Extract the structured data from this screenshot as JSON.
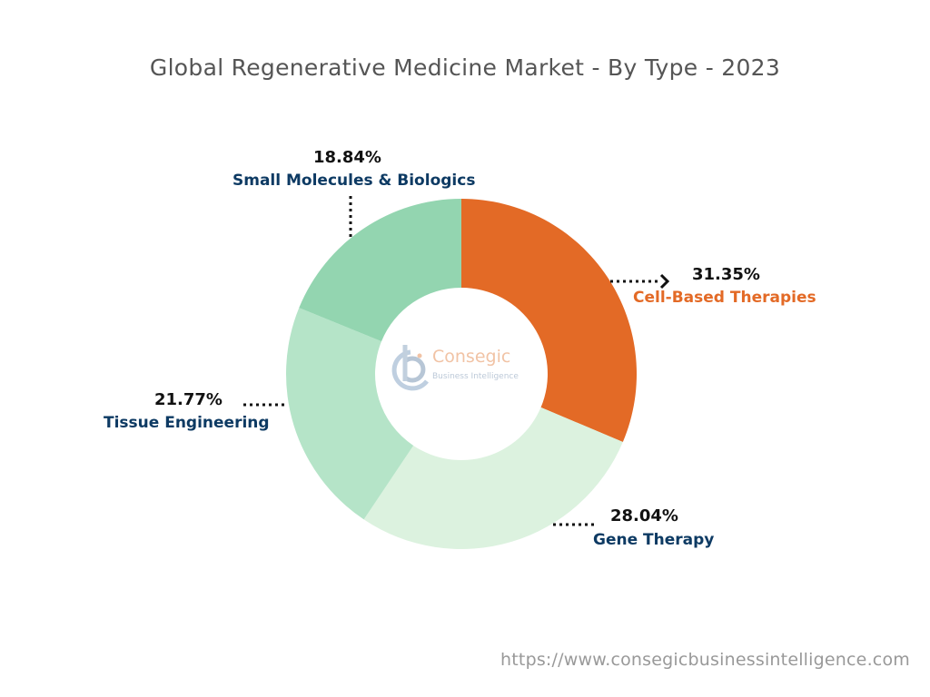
{
  "chart_data": {
    "type": "pie",
    "donut": true,
    "title": "Global Regenerative Medicine Market - By Type - 2023",
    "slices": [
      {
        "label": "Cell-Based Therapies",
        "value": 31.35,
        "display": "31.35%",
        "color": "#E36A26",
        "label_color": "#E36A26"
      },
      {
        "label": "Gene Therapy",
        "value": 28.04,
        "display": "28.04%",
        "color": "#DCF2DF",
        "label_color": "#0D3A63"
      },
      {
        "label": "Tissue Engineering",
        "value": 21.77,
        "display": "21.77%",
        "color": "#B5E4C8",
        "label_color": "#0D3A63"
      },
      {
        "label": "Small Molecules & Biologics",
        "value": 18.84,
        "display": "18.84%",
        "color": "#93D5B0",
        "label_color": "#0D3A63"
      }
    ]
  },
  "logo": {
    "name": "Consegic",
    "tagline": "Business Intelligence"
  },
  "footer_url": "https://www.consegicbusinessintelligence.com"
}
